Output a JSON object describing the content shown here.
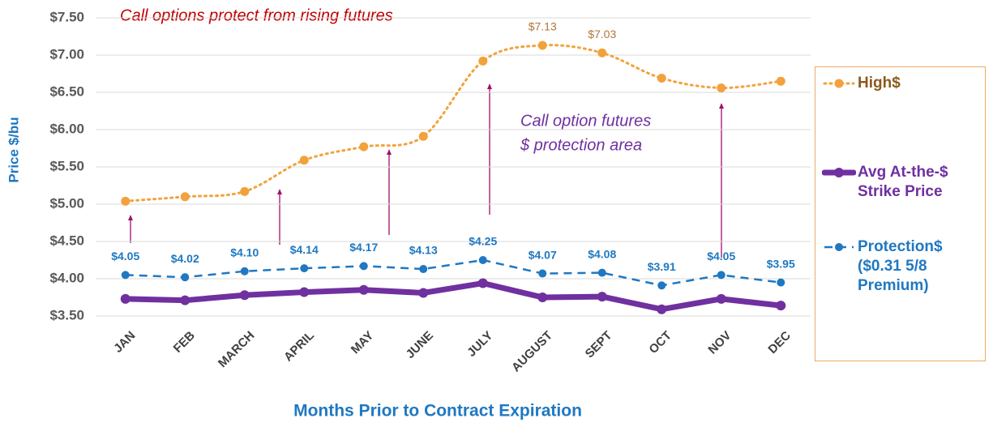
{
  "chart_data": {
    "type": "line",
    "y_label": "Price $/bu",
    "x_label": "Months Prior to Contract Expiration",
    "annotations": [
      "Call options protect from rising futures",
      "Call option futures",
      "$ protection area"
    ],
    "categories": [
      "JAN",
      "FEB",
      "MARCH",
      "APRIL",
      "MAY",
      "JUNE",
      "JULY",
      "AUGUST",
      "SEPT",
      "OCT",
      "NOV",
      "DEC"
    ],
    "series": [
      {
        "name": "High$",
        "color": "#f2a23c",
        "label_color": "#b27638",
        "style": "dotted",
        "smooth": true,
        "values": [
          5.04,
          5.1,
          5.17,
          5.59,
          5.77,
          5.91,
          6.92,
          7.13,
          7.03,
          6.69,
          6.56,
          6.65
        ],
        "value_labels": [
          null,
          null,
          null,
          null,
          null,
          null,
          null,
          "$7.13",
          "$7.03",
          null,
          null,
          null
        ]
      },
      {
        "name": "Avg At-the-$ Strike Price",
        "color": "#7030a0",
        "style": "thick",
        "values": [
          3.73,
          3.71,
          3.78,
          3.82,
          3.85,
          3.81,
          3.94,
          3.75,
          3.76,
          3.59,
          3.73,
          3.64
        ]
      },
      {
        "name": "Protection$ ($0.31 5/8 Premium)",
        "color": "#1f78c1",
        "label_color": "#1f78c1",
        "style": "dashed",
        "values": [
          4.05,
          4.02,
          4.1,
          4.14,
          4.17,
          4.13,
          4.25,
          4.07,
          4.08,
          3.91,
          4.05,
          3.95
        ],
        "value_labels": [
          "$4.05",
          "$4.02",
          "$4.10",
          "$4.14",
          "$4.17",
          "$4.13",
          "$4.25",
          "$4.07",
          "$4.08",
          "$3.91",
          "$4.05",
          "$3.95"
        ]
      }
    ],
    "ylim": [
      3.5,
      7.5
    ],
    "yticks": [
      {
        "value": 3.5,
        "label": "$3.50"
      },
      {
        "value": 4,
        "label": "$4.00"
      },
      {
        "value": 4.5,
        "label": "$4.50"
      },
      {
        "value": 5,
        "label": "$5.00"
      },
      {
        "value": 5.5,
        "label": "$5.50"
      },
      {
        "value": 6,
        "label": "$6.00"
      },
      {
        "value": 6.5,
        "label": "$6.50"
      },
      {
        "value": 7,
        "label": "$7.00"
      },
      {
        "value": 7.5,
        "label": "$7.50"
      }
    ],
    "grid": true
  }
}
